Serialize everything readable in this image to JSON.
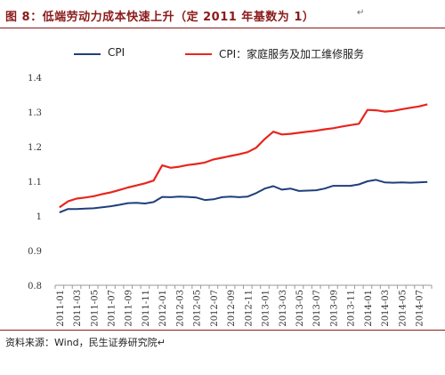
{
  "figure": {
    "title": "图 8：低端劳动力成本快速上升（定 2011 年基数为 1）",
    "title_mark": "↵",
    "source": "资料来源：Wind，民生证券研究院↵"
  },
  "chart_data": {
    "type": "line",
    "grid": false,
    "legend_placement": "top",
    "ylim": [
      0.8,
      1.4
    ],
    "yticks": [
      "1.4",
      "1.3",
      "1.2",
      "1.1",
      "1",
      "0.9",
      "0.8"
    ],
    "categories": [
      "2011-01",
      "2011-02",
      "2011-03",
      "2011-04",
      "2011-05",
      "2011-06",
      "2011-07",
      "2011-08",
      "2011-09",
      "2011-10",
      "2011-11",
      "2011-12",
      "2012-01",
      "2012-02",
      "2012-03",
      "2012-04",
      "2012-05",
      "2012-06",
      "2012-07",
      "2012-08",
      "2012-09",
      "2012-10",
      "2012-11",
      "2012-12",
      "2013-01",
      "2013-02",
      "2013-03",
      "2013-04",
      "2013-05",
      "2013-06",
      "2013-07",
      "2013-08",
      "2013-09",
      "2013-10",
      "2013-11",
      "2013-12",
      "2014-01",
      "2014-02",
      "2014-03",
      "2014-04",
      "2014-05",
      "2014-06",
      "2014-07",
      "2014-08"
    ],
    "xtick_labels": [
      "2011-01",
      "2011-03",
      "2011-05",
      "2011-07",
      "2011-09",
      "2011-11",
      "2012-01",
      "2012-03",
      "2012-05",
      "2012-07",
      "2012-09",
      "2012-11",
      "2013-01",
      "2013-03",
      "2013-05",
      "2013-07",
      "2013-09",
      "2013-11",
      "2014-01",
      "2014-03",
      "2014-05",
      "2014-07"
    ],
    "series": [
      {
        "name": "CPI",
        "color": "#1F3F7A",
        "values": [
          1.01,
          1.02,
          1.02,
          1.021,
          1.022,
          1.025,
          1.028,
          1.032,
          1.037,
          1.038,
          1.036,
          1.04,
          1.055,
          1.054,
          1.056,
          1.055,
          1.053,
          1.046,
          1.048,
          1.054,
          1.056,
          1.054,
          1.056,
          1.066,
          1.079,
          1.086,
          1.076,
          1.079,
          1.072,
          1.073,
          1.074,
          1.079,
          1.087,
          1.087,
          1.087,
          1.091,
          1.1,
          1.104,
          1.097,
          1.096,
          1.097,
          1.096,
          1.097,
          1.098
        ]
      },
      {
        "name": "CPI：家庭服务及加工维修服务",
        "color": "#E8251E",
        "values": [
          1.025,
          1.042,
          1.05,
          1.053,
          1.057,
          1.063,
          1.068,
          1.075,
          1.082,
          1.088,
          1.094,
          1.102,
          1.146,
          1.139,
          1.142,
          1.147,
          1.15,
          1.154,
          1.163,
          1.168,
          1.173,
          1.178,
          1.184,
          1.197,
          1.222,
          1.243,
          1.235,
          1.237,
          1.24,
          1.243,
          1.246,
          1.25,
          1.253,
          1.258,
          1.262,
          1.266,
          1.306,
          1.305,
          1.301,
          1.303,
          1.308,
          1.312,
          1.316,
          1.322
        ]
      }
    ]
  }
}
